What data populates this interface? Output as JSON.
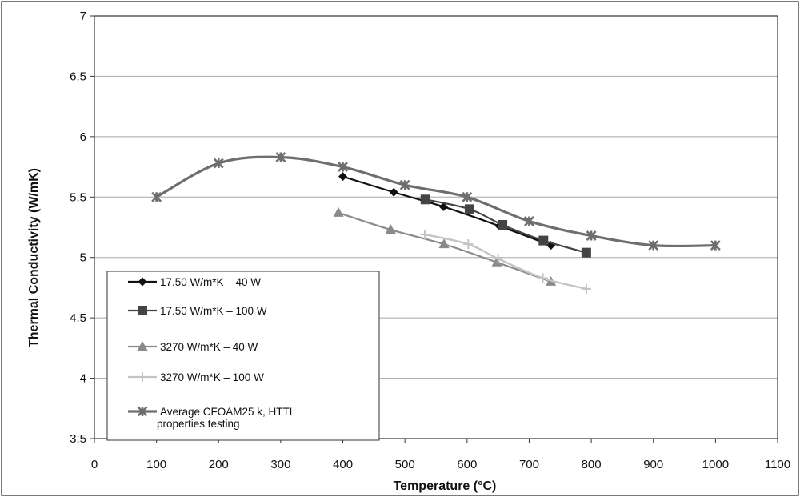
{
  "chart_data": {
    "type": "line",
    "xlabel": "Temperature (°C)",
    "ylabel": "Thermal Conductivity (W/mK)",
    "xlim": [
      0,
      1100
    ],
    "ylim": [
      3.5,
      7
    ],
    "x_ticks": [
      "0",
      "100",
      "200",
      "300",
      "400",
      "500",
      "600",
      "700",
      "800",
      "900",
      "1000",
      "1100"
    ],
    "y_ticks": [
      "3.5",
      "4",
      "4.5",
      "5",
      "5.5",
      "6",
      "6.5",
      "7"
    ],
    "grid": "horizontal",
    "legend_position": "bottom-left",
    "series": [
      {
        "name": "17.50 W/m*K – 40 W",
        "color": "#111111",
        "marker": "diamond",
        "x": [
          400,
          482,
          562,
          652,
          735
        ],
        "y": [
          5.67,
          5.54,
          5.42,
          5.26,
          5.1
        ]
      },
      {
        "name": "17.50 W/m*K  – 100 W",
        "color": "#444444",
        "marker": "square",
        "x": [
          533,
          604,
          657,
          723,
          792
        ],
        "y": [
          5.48,
          5.4,
          5.27,
          5.14,
          5.04
        ]
      },
      {
        "name": "3270 W/m*K – 40 W",
        "color": "#8a8a8a",
        "marker": "triangle",
        "x": [
          393,
          477,
          563,
          648,
          735
        ],
        "y": [
          5.37,
          5.23,
          5.11,
          4.96,
          4.8
        ]
      },
      {
        "name": "3270 W/m*K – 100 W",
        "color": "#c4c4c4",
        "marker": "plus",
        "x": [
          532,
          602,
          650,
          722,
          792
        ],
        "y": [
          5.19,
          5.11,
          4.99,
          4.83,
          4.74
        ]
      },
      {
        "name": "Average CFOAM25 k, HTTL properties testing",
        "name_lines": [
          "Average CFOAM25 k, HTTL",
          "properties testing"
        ],
        "color": "#6e6e6e",
        "marker": "star",
        "x": [
          100,
          200,
          300,
          400,
          500,
          600,
          700,
          800,
          900,
          1000
        ],
        "y": [
          5.5,
          5.78,
          5.83,
          5.75,
          5.6,
          5.5,
          5.3,
          5.18,
          5.1,
          5.1
        ]
      }
    ]
  }
}
